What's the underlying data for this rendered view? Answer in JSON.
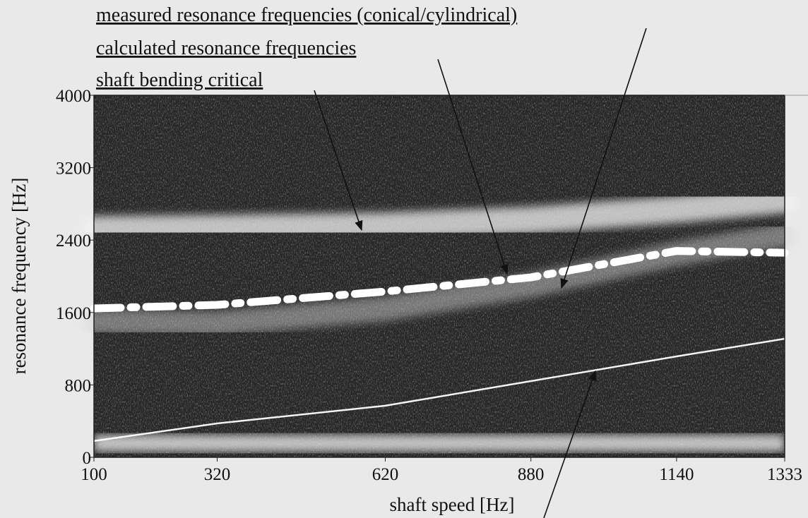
{
  "chart_data": {
    "type": "line",
    "x_label": "shaft speed [Hz]",
    "y_label": "resonance frequency [Hz]",
    "annotations": [
      "measured resonance frequencies (conical/cylindrical)",
      "calculated resonance frequencies",
      "shaft bending critical"
    ],
    "x": [
      100,
      320,
      620,
      880,
      1140,
      1333
    ],
    "series": [
      {
        "color": "#f2f2f2",
        "values": [
          2518,
          2530,
          2557,
          2620,
          2737,
          2846
        ]
      },
      {
        "color": "#d8d8d8",
        "values": [
          1500,
          1480,
          1640,
          1900,
          2250,
          2450
        ]
      },
      {
        "color": "#ffffff",
        "values": [
          1645,
          1684,
          1832,
          1988,
          2280,
          2260
        ]
      },
      {
        "color": "#ffffff",
        "values": [
          180,
          374,
          570,
          842,
          1115,
          1310
        ]
      }
    ],
    "xlim": [
      100,
      1333
    ],
    "xticks": [
      100,
      320,
      620,
      880,
      1140,
      1333
    ],
    "ylim": [
      0,
      4000
    ],
    "yticks": [
      0,
      800,
      1600,
      2400,
      3200,
      4000
    ]
  }
}
